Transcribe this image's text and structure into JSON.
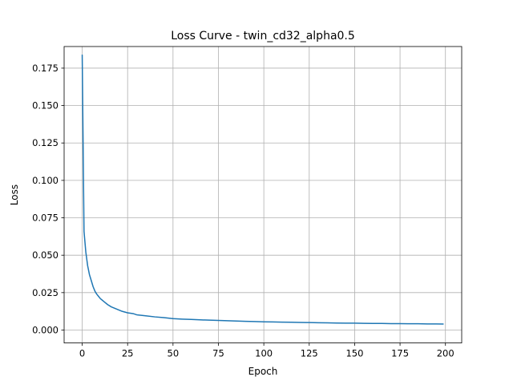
{
  "chart_data": {
    "type": "line",
    "title": "Loss Curve - twin_cd32_alpha0.5",
    "xlabel": "Epoch",
    "ylabel": "Loss",
    "xlim": [
      -9.95,
      208.95
    ],
    "ylim": [
      -0.00864,
      0.18944
    ],
    "grid": true,
    "xticks": [
      0,
      25,
      50,
      75,
      100,
      125,
      150,
      175,
      200
    ],
    "yticks": [
      0.0,
      0.025,
      0.05,
      0.075,
      0.1,
      0.125,
      0.15,
      0.175
    ],
    "ytick_labels": [
      "0.000",
      "0.025",
      "0.050",
      "0.075",
      "0.100",
      "0.125",
      "0.150",
      "0.175"
    ],
    "series_color": "#1f77b4",
    "x": [
      0,
      1,
      2,
      3,
      4,
      5,
      6,
      7,
      8,
      9,
      10,
      12,
      14,
      16,
      18,
      20,
      22,
      25,
      28,
      30,
      35,
      40,
      45,
      50,
      55,
      60,
      65,
      70,
      75,
      80,
      85,
      90,
      95,
      100,
      105,
      110,
      115,
      120,
      125,
      130,
      135,
      140,
      145,
      150,
      155,
      160,
      165,
      170,
      175,
      180,
      185,
      190,
      195,
      199
    ],
    "y": [
      0.184,
      0.066,
      0.052,
      0.043,
      0.037,
      0.033,
      0.029,
      0.026,
      0.024,
      0.0225,
      0.021,
      0.019,
      0.017,
      0.0155,
      0.0145,
      0.0135,
      0.0125,
      0.0115,
      0.011,
      0.0102,
      0.0095,
      0.0088,
      0.0083,
      0.0076,
      0.0073,
      0.0071,
      0.0068,
      0.0066,
      0.0064,
      0.0062,
      0.006,
      0.0058,
      0.0057,
      0.0055,
      0.0054,
      0.0053,
      0.0052,
      0.0051,
      0.005,
      0.0049,
      0.0048,
      0.0047,
      0.0046,
      0.0046,
      0.0045,
      0.0044,
      0.0044,
      0.0043,
      0.0043,
      0.0042,
      0.0042,
      0.0041,
      0.0041,
      0.004
    ]
  }
}
